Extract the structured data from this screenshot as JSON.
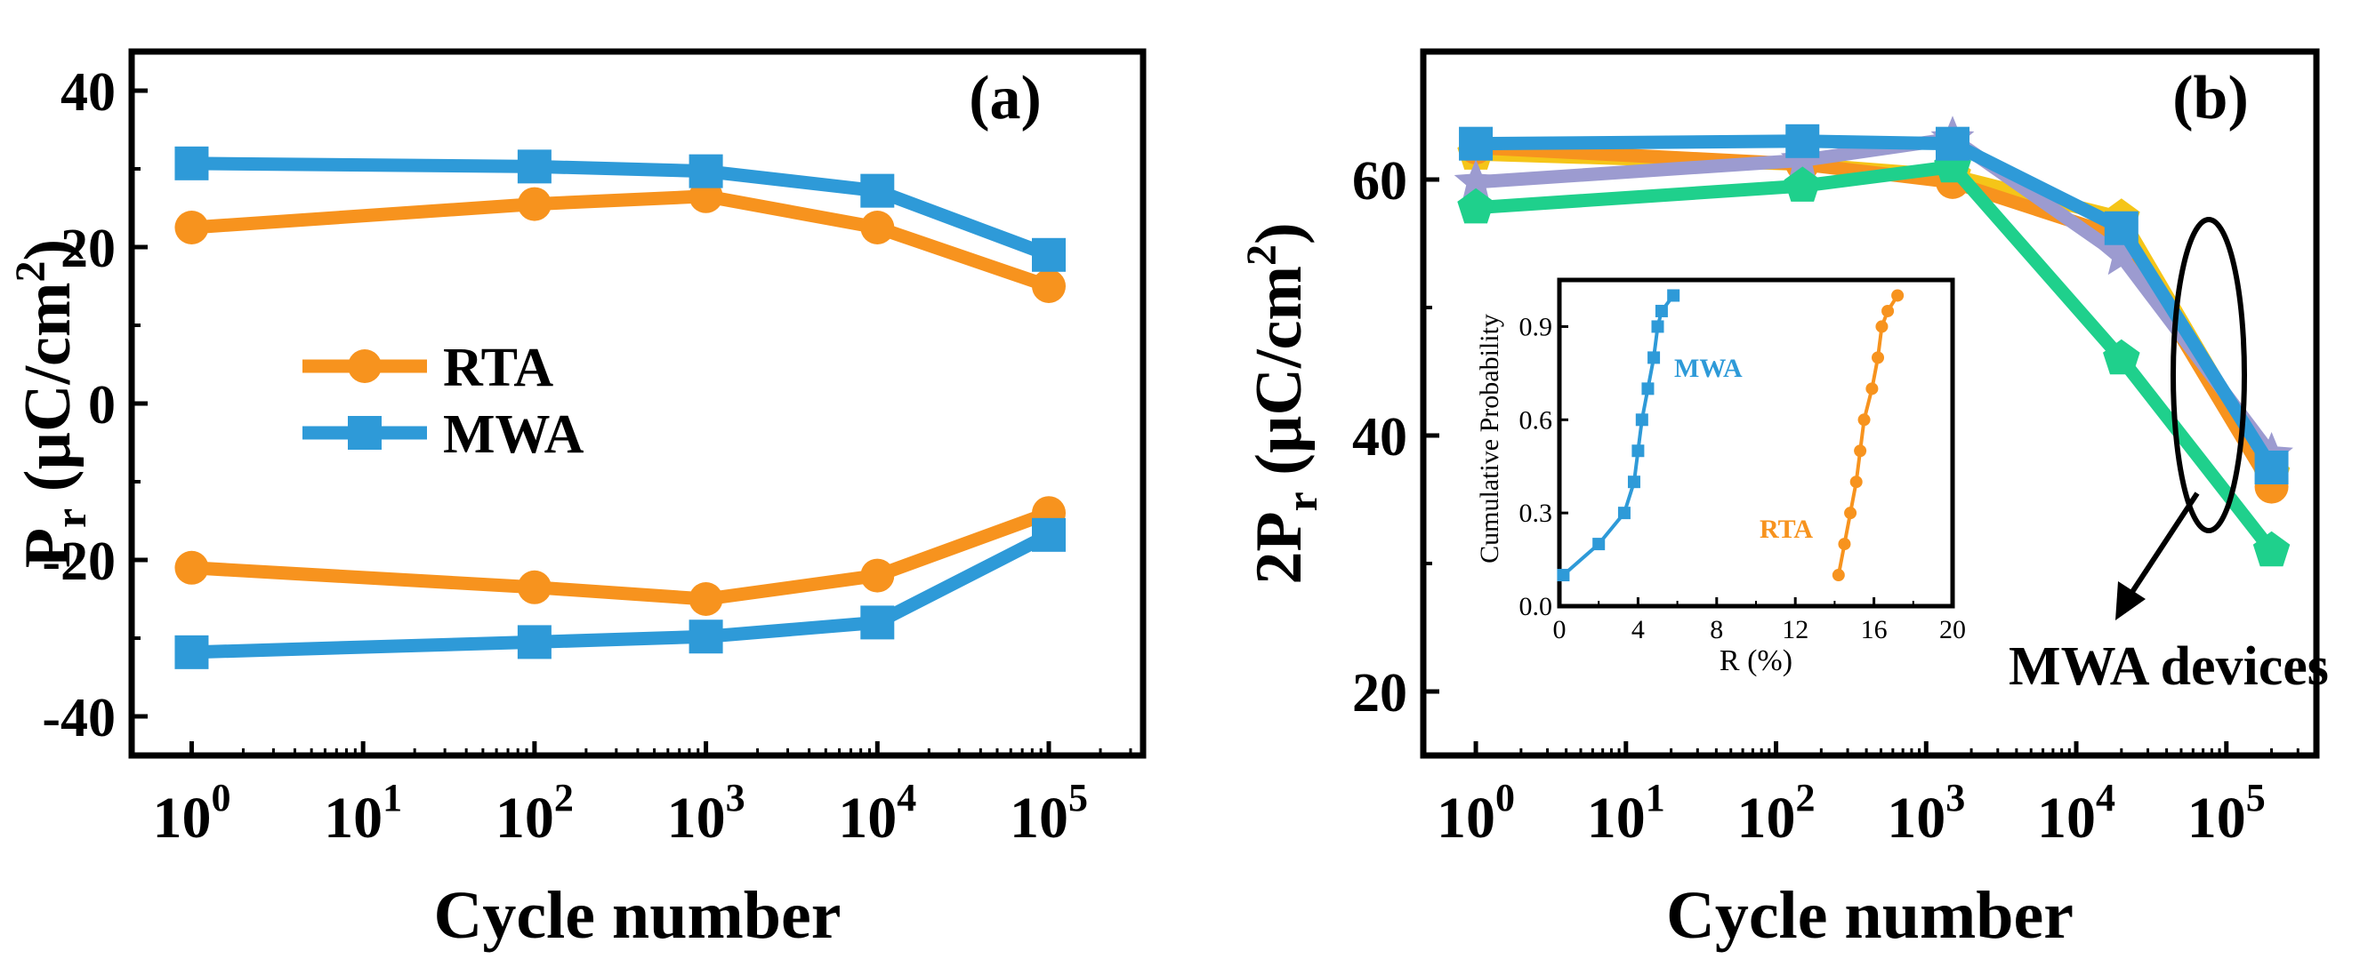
{
  "colors": {
    "rta": "#F7931E",
    "mwa": "#2E9AD8",
    "yellow": "#F5C518",
    "purple": "#9C9BD0",
    "green": "#1FD08C",
    "axis": "#000000"
  },
  "chart_data": [
    {
      "id": "a",
      "type": "line",
      "panel_label": "(a)",
      "xlabel": "Cycle number",
      "ylabel_main": "P",
      "ylabel_sub": "r",
      "ylabel_unit": "(µC/cm",
      "ylabel_sup": "2",
      "ylabel_close": ")",
      "xscale": "log10",
      "xlim_exp": [
        -0.35,
        5.55
      ],
      "xtick_exponents": [
        "0",
        "1",
        "2",
        "3",
        "4",
        "5"
      ],
      "ylim": [
        -45,
        45
      ],
      "yticks": [
        -40,
        -20,
        0,
        20,
        40
      ],
      "ytick_labels": [
        "-40",
        "-20",
        "0",
        "20",
        "40"
      ],
      "legend": [
        {
          "label": "RTA",
          "series": "RTA",
          "marker": "circle"
        },
        {
          "label": "MWA",
          "series": "MWA",
          "marker": "square"
        }
      ],
      "series": [
        {
          "name": "RTA",
          "branch": "positive",
          "color_key": "rta",
          "marker": "circle",
          "x": [
            1,
            100,
            1000,
            10000,
            100000
          ],
          "y": [
            22.5,
            25.5,
            26.5,
            22.5,
            15
          ]
        },
        {
          "name": "RTA",
          "branch": "negative",
          "color_key": "rta",
          "marker": "circle",
          "x": [
            1,
            100,
            1000,
            10000,
            100000
          ],
          "y": [
            -21,
            -23.5,
            -25,
            -22,
            -14
          ]
        },
        {
          "name": "MWA",
          "branch": "positive",
          "color_key": "mwa",
          "marker": "square",
          "x": [
            1,
            100,
            1000,
            10000,
            100000
          ],
          "y": [
            30.7,
            30.3,
            29.7,
            27.2,
            19
          ]
        },
        {
          "name": "MWA",
          "branch": "negative",
          "color_key": "mwa",
          "marker": "square",
          "x": [
            1,
            100,
            1000,
            10000,
            100000
          ],
          "y": [
            -31.8,
            -30.5,
            -29.8,
            -28,
            -16.8
          ]
        }
      ]
    },
    {
      "id": "b",
      "type": "line",
      "panel_label": "(b)",
      "xlabel": "Cycle number",
      "ylabel_main": "2P",
      "ylabel_sub": "r",
      "ylabel_unit": "(µC/cm",
      "ylabel_sup": "2",
      "ylabel_close": ")",
      "xscale": "log10",
      "xlim_exp": [
        -0.35,
        5.6
      ],
      "xtick_exponents": [
        "0",
        "1",
        "2",
        "3",
        "4",
        "5"
      ],
      "ylim": [
        15,
        70
      ],
      "yticks": [
        20,
        40,
        60
      ],
      "ytick_labels": [
        "20",
        "40",
        "60"
      ],
      "annotation": "MWA devices",
      "series": [
        {
          "name": "yellow device",
          "color_key": "yellow",
          "marker": "pentagon",
          "x": [
            1,
            150,
            1500,
            20000,
            200000
          ],
          "y": [
            62,
            61.2,
            60.3,
            57,
            37
          ]
        },
        {
          "name": "orange device",
          "color_key": "rta",
          "marker": "circle",
          "x": [
            1,
            150,
            1500,
            20000,
            200000
          ],
          "y": [
            62.5,
            61.2,
            59.8,
            55.5,
            36
          ]
        },
        {
          "name": "purple device",
          "color_key": "purple",
          "marker": "star",
          "x": [
            1,
            150,
            1500,
            20000,
            200000
          ],
          "y": [
            59.8,
            61.5,
            63.2,
            54,
            38.5
          ]
        },
        {
          "name": "green device",
          "color_key": "green",
          "marker": "pentagon",
          "x": [
            1,
            150,
            1500,
            20000,
            200000
          ],
          "y": [
            57.8,
            59.5,
            61,
            46,
            31
          ]
        },
        {
          "name": "blue device",
          "color_key": "mwa",
          "marker": "square",
          "x": [
            1,
            150,
            1500,
            20000,
            200000
          ],
          "y": [
            62.8,
            63,
            62.8,
            56.2,
            37.5
          ]
        }
      ]
    },
    {
      "id": "inset",
      "type": "line",
      "xlabel": "R (%)",
      "ylabel": "Cumulative Probability",
      "xlim": [
        0,
        20
      ],
      "ylim": [
        0,
        1.05
      ],
      "xticks": [
        0,
        4,
        8,
        12,
        16,
        20
      ],
      "xtick_labels": [
        "0",
        "4",
        "8",
        "12",
        "16",
        "20"
      ],
      "yticks": [
        0,
        0.3,
        0.6,
        0.9
      ],
      "ytick_labels": [
        "0.0",
        "0.3",
        "0.6",
        "0.9"
      ],
      "series": [
        {
          "name": "MWA",
          "label": "MWA",
          "color_key": "mwa",
          "marker": "square",
          "x": [
            0.2,
            2,
            3.3,
            3.8,
            4,
            4.2,
            4.5,
            4.8,
            5,
            5.2,
            5.8
          ],
          "y": [
            0.1,
            0.2,
            0.3,
            0.4,
            0.5,
            0.6,
            0.7,
            0.8,
            0.9,
            0.95,
            1.0
          ]
        },
        {
          "name": "RTA",
          "label": "RTA",
          "color_key": "rta",
          "marker": "circle",
          "x": [
            14.2,
            14.5,
            14.8,
            15.1,
            15.3,
            15.5,
            15.9,
            16.2,
            16.4,
            16.7,
            17.2
          ],
          "y": [
            0.1,
            0.2,
            0.3,
            0.4,
            0.5,
            0.6,
            0.7,
            0.8,
            0.9,
            0.95,
            1.0
          ]
        }
      ]
    }
  ]
}
